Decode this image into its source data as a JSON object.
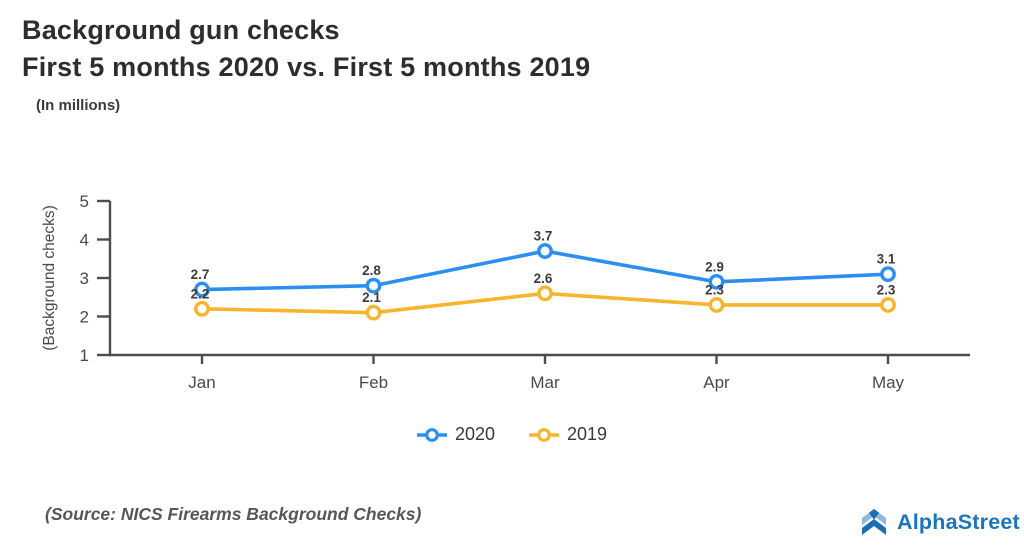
{
  "header": {
    "title_line1": "Background gun checks",
    "title_line2": "First 5 months 2020 vs. First 5 months 2019",
    "subtitle": "(In millions)"
  },
  "chart_data": {
    "type": "line",
    "categories": [
      "Jan",
      "Feb",
      "Mar",
      "Apr",
      "May"
    ],
    "series": [
      {
        "name": "2020",
        "color": "#2b8ff2",
        "values": [
          2.7,
          2.8,
          3.7,
          2.9,
          3.1
        ]
      },
      {
        "name": "2019",
        "color": "#f6b52d",
        "values": [
          2.2,
          2.1,
          2.6,
          2.3,
          2.3
        ]
      }
    ],
    "title": "Background gun checks First 5 months 2020 vs. First 5 months 2019",
    "xlabel": "",
    "ylabel": "(Background checks)",
    "ylim": [
      1,
      5
    ],
    "yticks": [
      1,
      2,
      3,
      4,
      5
    ],
    "grid": false,
    "legend_position": "bottom",
    "marker": "hollow-circle",
    "axis_color": "#4d4d4d"
  },
  "footer": {
    "source": "(Source: NICS Firearms Background Checks)",
    "brand": "AlphaStreet",
    "brand_color": "#1b75bc",
    "logo_dark": "#1a6fb4",
    "logo_light": "#8db9dd"
  }
}
